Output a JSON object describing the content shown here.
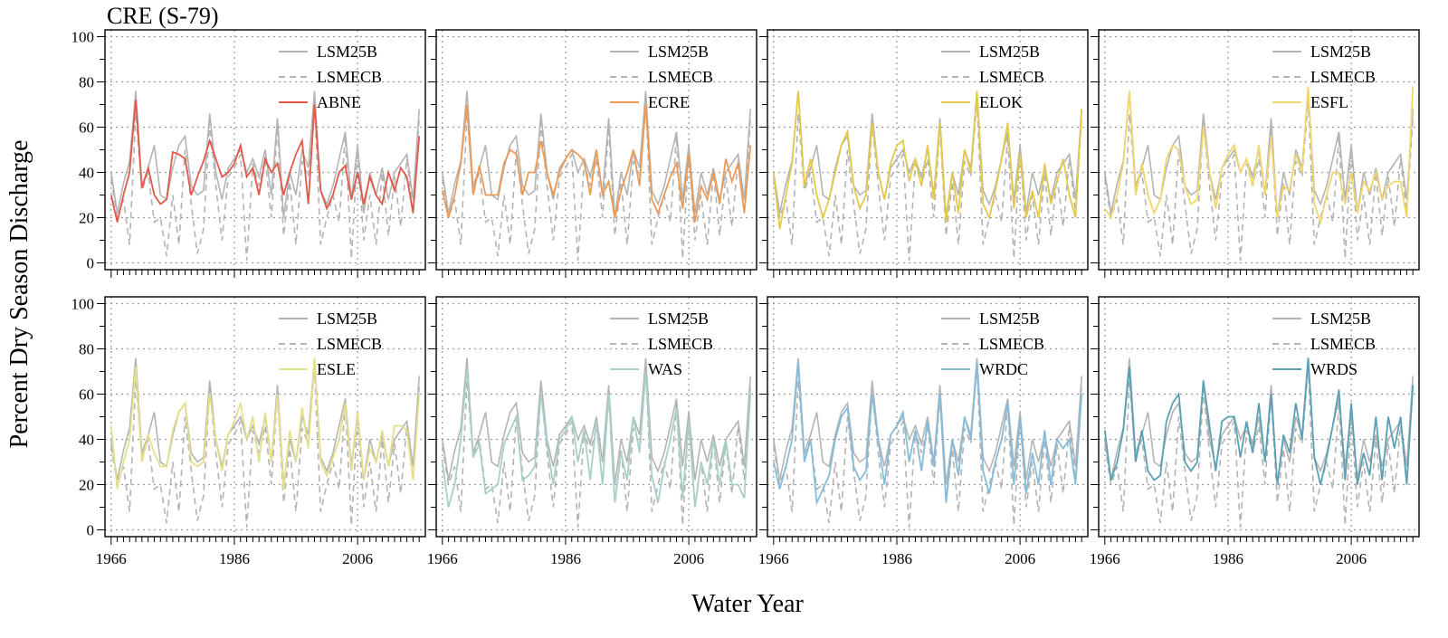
{
  "figure": {
    "title": "CRE (S-79)",
    "xlabel": "Water Year",
    "ylabel": "Percent Dry Season Discharge"
  },
  "colors": {
    "LSM25B": "#b4b4b4",
    "LSMECB": "#b4b4b4",
    "ABNE": "#e0594a",
    "ECRE": "#ec9a55",
    "ELOK": "#e5c94a",
    "ESFL": "#f1d66d",
    "ESLE": "#e3df8a",
    "WAS": "#a9cfc9",
    "WRDC": "#86bcd9",
    "WRDS": "#5aa0b4",
    "grid": "#9a9a9a"
  },
  "chart_data": {
    "type": "line",
    "x": [
      1966,
      1967,
      1968,
      1969,
      1970,
      1971,
      1972,
      1973,
      1974,
      1975,
      1976,
      1977,
      1978,
      1979,
      1980,
      1981,
      1982,
      1983,
      1984,
      1985,
      1986,
      1987,
      1988,
      1989,
      1990,
      1991,
      1992,
      1993,
      1994,
      1995,
      1996,
      1997,
      1998,
      1999,
      2000,
      2001,
      2002,
      2003,
      2004,
      2005,
      2006,
      2007,
      2008,
      2009,
      2010,
      2011,
      2012,
      2013,
      2014,
      2015,
      2016
    ],
    "xlim": [
      1965,
      2017
    ],
    "ylim": [
      -3,
      103
    ],
    "xticks": [
      1966,
      1986,
      2006
    ],
    "yticks": [
      0,
      20,
      40,
      60,
      80,
      100
    ],
    "grid": true,
    "legend_position": "top-right",
    "reference_series": [
      {
        "name": "LSM25B",
        "style": "solid",
        "values": [
          40,
          22,
          35,
          45,
          76,
          34,
          42,
          52,
          30,
          28,
          42,
          52,
          56,
          34,
          30,
          32,
          66,
          40,
          28,
          42,
          46,
          50,
          40,
          46,
          38,
          50,
          30,
          64,
          20,
          40,
          30,
          50,
          42,
          76,
          32,
          26,
          34,
          46,
          58,
          28,
          52,
          22,
          40,
          30,
          42,
          28,
          40,
          44,
          48,
          28,
          68
        ]
      },
      {
        "name": "LSMECB",
        "style": "dashed",
        "values": [
          37,
          20,
          28,
          8,
          66,
          32,
          40,
          18,
          20,
          3,
          30,
          8,
          50,
          26,
          4,
          15,
          62,
          34,
          10,
          38,
          42,
          48,
          1,
          44,
          34,
          46,
          20,
          60,
          12,
          36,
          8,
          45,
          38,
          72,
          8,
          20,
          30,
          18,
          56,
          2,
          50,
          10,
          30,
          8,
          40,
          12,
          38,
          16,
          46,
          22,
          64
        ]
      }
    ],
    "panels": [
      {
        "name": "ABNE",
        "values": [
          30,
          18,
          30,
          40,
          72,
          33,
          42,
          30,
          26,
          28,
          49,
          48,
          46,
          30,
          38,
          45,
          54,
          46,
          38,
          40,
          44,
          52,
          38,
          42,
          30,
          46,
          40,
          44,
          30,
          40,
          48,
          54,
          26,
          70,
          32,
          24,
          30,
          40,
          43,
          28,
          40,
          26,
          38,
          30,
          26,
          40,
          32,
          42,
          38,
          22,
          56
        ]
      },
      {
        "name": "ECRE",
        "values": [
          32,
          20,
          30,
          44,
          70,
          30,
          43,
          30,
          30,
          30,
          44,
          50,
          48,
          30,
          40,
          40,
          54,
          40,
          30,
          40,
          46,
          50,
          48,
          45,
          30,
          50,
          30,
          36,
          20,
          32,
          40,
          50,
          34,
          70,
          28,
          22,
          30,
          38,
          44,
          24,
          48,
          18,
          34,
          28,
          40,
          26,
          46,
          36,
          44,
          22,
          52
        ]
      },
      {
        "name": "ELOK",
        "values": [
          40,
          15,
          30,
          44,
          76,
          34,
          46,
          30,
          20,
          28,
          40,
          52,
          58,
          34,
          24,
          30,
          62,
          40,
          28,
          44,
          52,
          54,
          36,
          46,
          34,
          52,
          28,
          62,
          18,
          40,
          22,
          50,
          40,
          76,
          26,
          20,
          32,
          46,
          62,
          24,
          48,
          20,
          32,
          20,
          44,
          26,
          36,
          46,
          30,
          20,
          68
        ]
      },
      {
        "name": "ESFL",
        "values": [
          24,
          20,
          30,
          44,
          76,
          30,
          44,
          30,
          22,
          28,
          46,
          52,
          50,
          34,
          26,
          28,
          60,
          40,
          24,
          42,
          48,
          52,
          40,
          46,
          34,
          52,
          30,
          56,
          20,
          34,
          32,
          48,
          40,
          78,
          26,
          18,
          30,
          40,
          40,
          26,
          40,
          22,
          36,
          32,
          40,
          28,
          34,
          36,
          36,
          20,
          78
        ]
      },
      {
        "name": "ESLE",
        "values": [
          46,
          18,
          30,
          40,
          72,
          30,
          42,
          34,
          28,
          28,
          44,
          52,
          56,
          30,
          28,
          30,
          60,
          40,
          26,
          42,
          48,
          56,
          40,
          50,
          30,
          52,
          30,
          60,
          18,
          44,
          30,
          54,
          36,
          76,
          30,
          24,
          32,
          40,
          56,
          26,
          52,
          22,
          36,
          30,
          44,
          28,
          46,
          46,
          44,
          22,
          60
        ]
      },
      {
        "name": "WAS",
        "values": [
          30,
          10,
          20,
          40,
          72,
          32,
          38,
          16,
          18,
          20,
          38,
          44,
          50,
          22,
          24,
          28,
          60,
          38,
          20,
          40,
          44,
          50,
          30,
          44,
          22,
          48,
          20,
          60,
          12,
          34,
          22,
          50,
          34,
          70,
          24,
          12,
          28,
          40,
          54,
          14,
          48,
          10,
          30,
          20,
          40,
          20,
          40,
          20,
          20,
          14,
          60
        ]
      },
      {
        "name": "WRDC",
        "values": [
          30,
          18,
          28,
          40,
          74,
          30,
          40,
          12,
          18,
          24,
          40,
          50,
          54,
          28,
          22,
          26,
          60,
          40,
          20,
          42,
          46,
          52,
          30,
          44,
          26,
          48,
          28,
          60,
          12,
          40,
          24,
          50,
          40,
          74,
          26,
          16,
          30,
          40,
          56,
          20,
          50,
          16,
          34,
          20,
          44,
          20,
          40,
          36,
          40,
          20,
          60
        ]
      },
      {
        "name": "WRDS",
        "values": [
          44,
          22,
          30,
          44,
          72,
          30,
          44,
          26,
          22,
          24,
          48,
          56,
          60,
          30,
          26,
          30,
          66,
          46,
          26,
          48,
          50,
          50,
          32,
          48,
          34,
          56,
          30,
          60,
          20,
          42,
          34,
          56,
          40,
          76,
          32,
          20,
          32,
          46,
          62,
          22,
          56,
          20,
          34,
          24,
          50,
          22,
          50,
          36,
          50,
          20,
          64
        ]
      }
    ]
  }
}
